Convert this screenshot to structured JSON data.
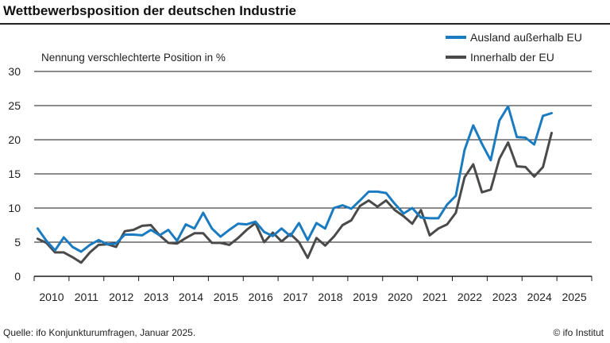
{
  "header": {
    "title": "Wettbewerbsposition der deutschen Industrie"
  },
  "footer": {
    "source": "Quelle: ifo Konjunkturumfragen, Januar 2025.",
    "credit": "© ifo Institut"
  },
  "colors": {
    "series_outside": "#1a7bc1",
    "series_inside": "#4a4a4a",
    "grid": "#1a1a1a"
  },
  "chart_data": {
    "type": "line",
    "ylabel": "Nennung verschlechterte Position in %",
    "ylim": [
      0,
      30
    ],
    "yticks": [
      0,
      5,
      10,
      15,
      20,
      25,
      30
    ],
    "xlim": [
      2009.5,
      2025.5
    ],
    "xticks": [
      "2010",
      "2011",
      "2012",
      "2013",
      "2014",
      "2015",
      "2016",
      "2017",
      "2018",
      "2019",
      "2020",
      "2021",
      "2022",
      "2023",
      "2024",
      "2025"
    ],
    "legend_position": "top-right",
    "grid": true,
    "series": [
      {
        "name": "Ausland außerhalb EU",
        "x": [
          2009.6,
          2009.85,
          2010.1,
          2010.35,
          2010.6,
          2010.85,
          2011.1,
          2011.35,
          2011.6,
          2011.85,
          2012.1,
          2012.35,
          2012.6,
          2012.85,
          2013.1,
          2013.35,
          2013.6,
          2013.85,
          2014.1,
          2014.35,
          2014.6,
          2014.85,
          2015.1,
          2015.35,
          2015.6,
          2015.85,
          2016.1,
          2016.35,
          2016.6,
          2016.85,
          2017.1,
          2017.35,
          2017.6,
          2017.85,
          2018.1,
          2018.35,
          2018.6,
          2018.85,
          2019.1,
          2019.35,
          2019.6,
          2019.85,
          2020.1,
          2020.35,
          2020.6,
          2020.85,
          2021.1,
          2021.35,
          2021.6,
          2021.85,
          2022.1,
          2022.35,
          2022.6,
          2022.85,
          2023.1,
          2023.35,
          2023.6,
          2023.85,
          2024.1,
          2024.35
        ],
        "values": [
          7.0,
          5.2,
          3.8,
          5.7,
          4.3,
          3.6,
          4.6,
          5.3,
          4.7,
          4.8,
          6.1,
          6.1,
          6.0,
          6.8,
          6.0,
          6.8,
          5.2,
          7.6,
          7.0,
          9.3,
          7.0,
          5.8,
          6.8,
          7.7,
          7.6,
          8.0,
          6.5,
          5.9,
          7.0,
          5.9,
          7.8,
          5.3,
          7.8,
          7.0,
          10.0,
          10.4,
          9.9,
          11.1,
          12.4,
          12.4,
          12.2,
          10.6,
          9.2,
          10.0,
          8.6,
          8.5,
          8.5,
          10.5,
          11.8,
          18.5,
          22.1,
          19.4,
          17.0,
          22.8,
          24.9,
          20.4,
          20.3,
          19.3,
          23.5,
          23.9
        ]
      },
      {
        "name": "Innerhalb der EU",
        "x": [
          2009.6,
          2009.85,
          2010.1,
          2010.35,
          2010.6,
          2010.85,
          2011.1,
          2011.35,
          2011.6,
          2011.85,
          2012.1,
          2012.35,
          2012.6,
          2012.85,
          2013.1,
          2013.35,
          2013.6,
          2013.85,
          2014.1,
          2014.35,
          2014.6,
          2014.85,
          2015.1,
          2015.35,
          2015.6,
          2015.85,
          2016.1,
          2016.35,
          2016.6,
          2016.85,
          2017.1,
          2017.35,
          2017.6,
          2017.85,
          2018.1,
          2018.35,
          2018.6,
          2018.85,
          2019.1,
          2019.35,
          2019.6,
          2019.85,
          2020.1,
          2020.35,
          2020.6,
          2020.85,
          2021.1,
          2021.35,
          2021.6,
          2021.85,
          2022.1,
          2022.35,
          2022.6,
          2022.85,
          2023.1,
          2023.35,
          2023.6,
          2023.85,
          2024.1,
          2024.35
        ],
        "values": [
          5.5,
          4.9,
          3.5,
          3.5,
          2.8,
          2.0,
          3.5,
          4.6,
          4.7,
          4.3,
          6.6,
          6.8,
          7.4,
          7.5,
          6.0,
          4.9,
          4.8,
          5.6,
          6.3,
          6.3,
          4.9,
          4.9,
          4.6,
          5.6,
          6.8,
          7.8,
          5.0,
          6.4,
          5.1,
          6.2,
          5.0,
          2.7,
          5.6,
          4.5,
          5.8,
          7.5,
          8.2,
          10.3,
          11.1,
          10.2,
          11.1,
          9.7,
          8.8,
          7.7,
          9.7,
          6.0,
          7.0,
          7.6,
          9.3,
          14.5,
          16.4,
          12.3,
          12.7,
          17.2,
          19.6,
          16.1,
          16.0,
          14.6,
          16.0,
          21.0
        ]
      }
    ]
  }
}
